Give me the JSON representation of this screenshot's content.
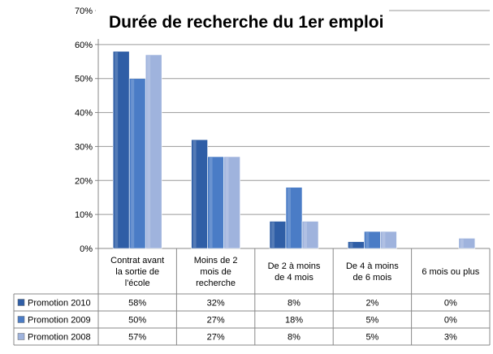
{
  "chart_data": {
    "type": "bar",
    "title": "Durée de recherche du 1er emploi",
    "xlabel": "",
    "ylabel": "",
    "ylim": [
      0,
      70
    ],
    "y_ticks": [
      "0%",
      "10%",
      "20%",
      "30%",
      "40%",
      "50%",
      "60%",
      "70%"
    ],
    "grid": true,
    "legend": "data-table",
    "categories": [
      [
        "Contrat avant",
        "la sortie de",
        "l'école"
      ],
      [
        "Moins de 2",
        "mois de",
        "recherche"
      ],
      [
        "De 2 à moins",
        "de 4 mois"
      ],
      [
        "De 4 à moins",
        "de 6 mois"
      ],
      [
        "6 mois ou plus"
      ]
    ],
    "series": [
      {
        "name": "Promotion 2010",
        "values": [
          58,
          32,
          8,
          2,
          0
        ],
        "labels": [
          "58%",
          "32%",
          "8%",
          "2%",
          "0%"
        ],
        "color": "#2f5ea6"
      },
      {
        "name": "Promotion 2009",
        "values": [
          50,
          27,
          18,
          5,
          0
        ],
        "labels": [
          "50%",
          "27%",
          "18%",
          "5%",
          "0%"
        ],
        "color": "#4a7cc6"
      },
      {
        "name": "Promotion 2008",
        "values": [
          57,
          27,
          8,
          5,
          3
        ],
        "labels": [
          "57%",
          "27%",
          "8%",
          "5%",
          "3%"
        ],
        "color": "#9fb3dd"
      }
    ]
  }
}
